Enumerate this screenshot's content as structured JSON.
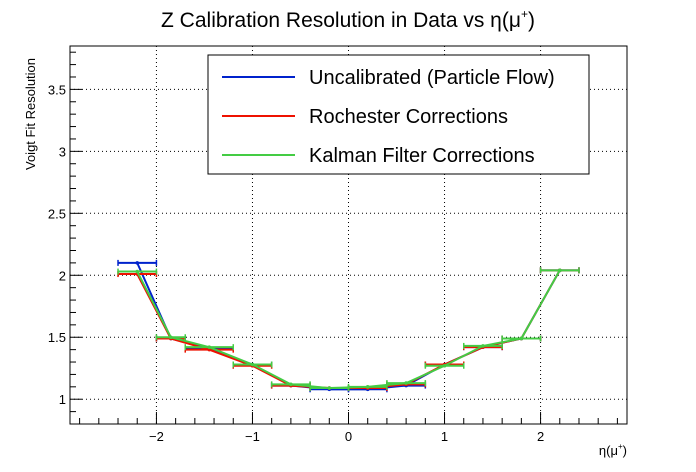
{
  "chart_data": {
    "type": "line",
    "title": "Z Calibration Resolution in Data vs η(μ⁺)",
    "title_main": "Z Calibration Resolution in Data vs η(μ",
    "title_sup": "+",
    "title_close": ")",
    "xlabel_main": "η(μ",
    "xlabel_sup": "+",
    "xlabel_close": ")",
    "ylabel": "Voigt Fit Resolution",
    "xlim": [
      -2.9,
      2.9
    ],
    "ylim": [
      0.8,
      3.85
    ],
    "x_ticks": [
      {
        "value": -2,
        "label": "−2"
      },
      {
        "value": -1,
        "label": "−1"
      },
      {
        "value": 0,
        "label": "0"
      },
      {
        "value": 1,
        "label": "1"
      },
      {
        "value": 2,
        "label": "2"
      }
    ],
    "y_ticks": [
      {
        "value": 1,
        "label": "1"
      },
      {
        "value": 1.5,
        "label": "1.5"
      },
      {
        "value": 2,
        "label": "2"
      },
      {
        "value": 2.5,
        "label": "2.5"
      },
      {
        "value": 3,
        "label": "3"
      },
      {
        "value": 3.5,
        "label": "3.5"
      }
    ],
    "grid": true,
    "legend_position": "top-right",
    "bins": [
      {
        "lo": -2.4,
        "hi": -2.0
      },
      {
        "lo": -2.0,
        "hi": -1.7
      },
      {
        "lo": -1.7,
        "hi": -1.2
      },
      {
        "lo": -1.2,
        "hi": -0.8
      },
      {
        "lo": -0.8,
        "hi": -0.4
      },
      {
        "lo": -0.4,
        "hi": 0.0
      },
      {
        "lo": 0.0,
        "hi": 0.4
      },
      {
        "lo": 0.4,
        "hi": 0.8
      },
      {
        "lo": 0.8,
        "hi": 1.2
      },
      {
        "lo": 1.2,
        "hi": 1.6
      },
      {
        "lo": 1.6,
        "hi": 2.0
      },
      {
        "lo": 2.0,
        "hi": 2.4
      }
    ],
    "series": [
      {
        "name": "Uncalibrated (Particle Flow)",
        "color": "#0022cc",
        "values": [
          2.1,
          1.49,
          1.41,
          1.28,
          1.11,
          1.08,
          1.08,
          1.11,
          1.28,
          1.42,
          1.49,
          2.04
        ]
      },
      {
        "name": "Rochester Corrections",
        "color": "#ee1100",
        "values": [
          2.01,
          1.49,
          1.4,
          1.27,
          1.11,
          1.09,
          1.09,
          1.12,
          1.28,
          1.42,
          1.49,
          2.04
        ]
      },
      {
        "name": "Kalman Filter Corrections",
        "color": "#44cc44",
        "values": [
          2.03,
          1.5,
          1.42,
          1.28,
          1.12,
          1.09,
          1.1,
          1.13,
          1.27,
          1.43,
          1.49,
          2.04
        ]
      }
    ]
  }
}
